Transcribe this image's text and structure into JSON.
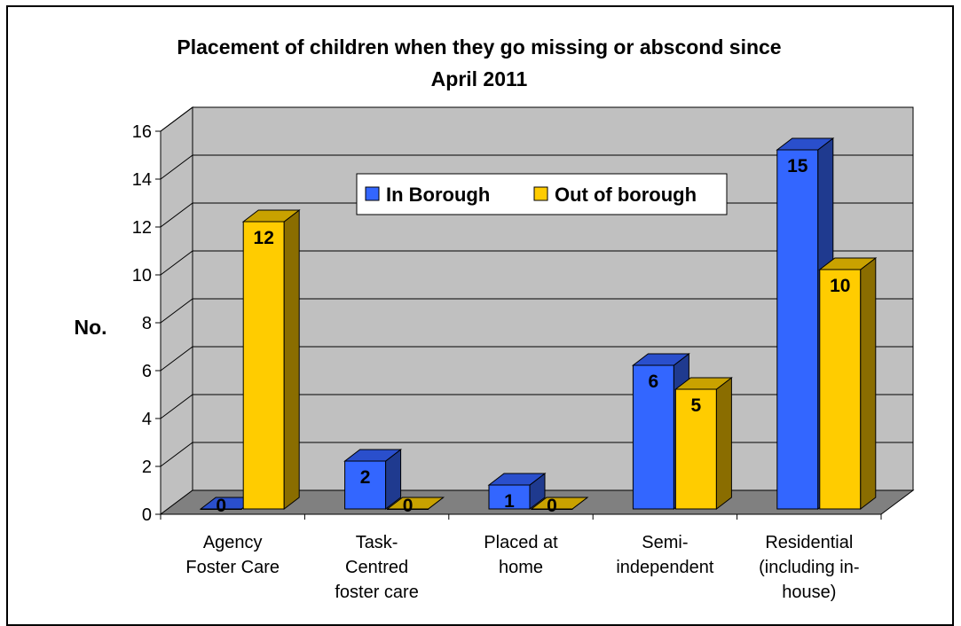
{
  "chart_data": {
    "type": "bar",
    "title_line1": "Placement of children when they go missing or abscond since",
    "title_line2": "April 2011",
    "ylabel": "No.",
    "xlabel": "",
    "ylim": [
      0,
      16
    ],
    "yticks": [
      0,
      2,
      4,
      6,
      8,
      10,
      12,
      14,
      16
    ],
    "grid": true,
    "legend_position": "top-center",
    "categories": [
      [
        "Agency",
        "Foster Care"
      ],
      [
        "Task-",
        "Centred",
        "foster care"
      ],
      [
        "Placed at",
        "home"
      ],
      [
        "Semi-",
        "independent"
      ],
      [
        "Residential",
        "(including in-",
        "house)"
      ]
    ],
    "series": [
      {
        "name": "In Borough",
        "values": [
          0,
          2,
          1,
          6,
          15
        ],
        "color": "#3366FF",
        "side": "#1F3A8F",
        "top": "#2A4FCC"
      },
      {
        "name": "Out of borough",
        "values": [
          12,
          0,
          0,
          5,
          10
        ],
        "color": "#FFCC00",
        "side": "#8A6D00",
        "top": "#C9A200"
      }
    ],
    "colors": {
      "wall": "#C0C0C0",
      "floor": "#808080",
      "grid": "#000000"
    }
  }
}
